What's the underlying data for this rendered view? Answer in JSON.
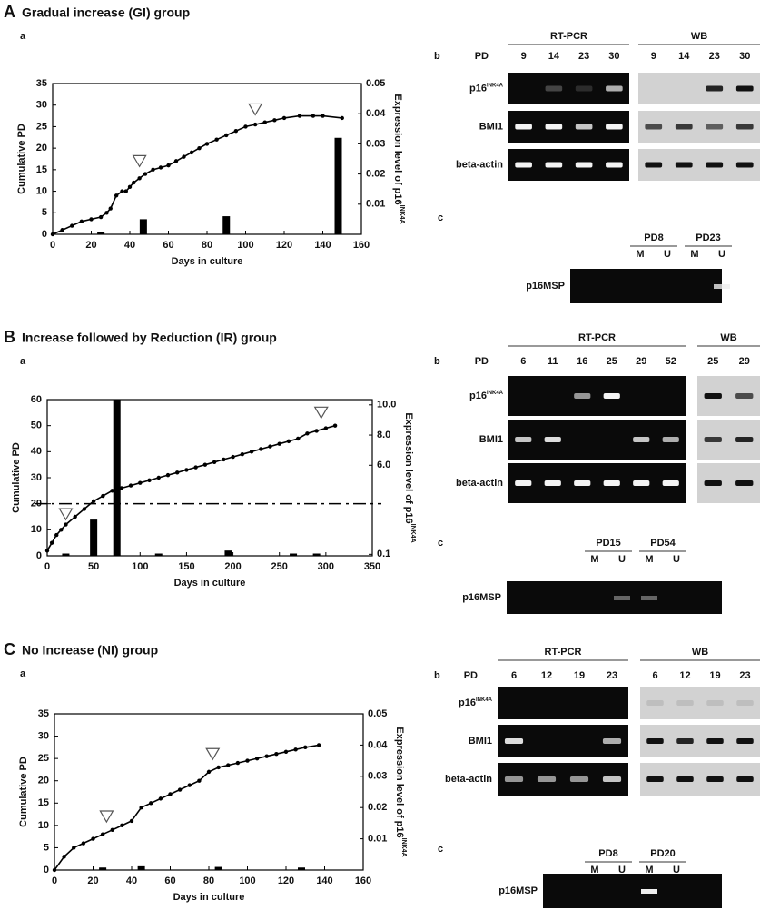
{
  "panels": [
    {
      "label": "A",
      "title": "Gradual increase (GI) group",
      "chart_label": "a",
      "gel_label": "b",
      "msp_label": "c",
      "rt_title": "RT-PCR",
      "wb_title": "WB",
      "pd_label": "PD",
      "rt_lanes": [
        "9",
        "14",
        "23",
        "30"
      ],
      "wb_lanes": [
        "9",
        "14",
        "23",
        "30"
      ],
      "rows": [
        {
          "name": "p16",
          "sup": "INK4A"
        },
        {
          "name": "BMI1"
        },
        {
          "name": "beta-actin"
        }
      ],
      "msp": {
        "groups": [
          "PD8",
          "PD23"
        ],
        "lanes": [
          "M",
          "U",
          "M",
          "U"
        ],
        "row": "p16MSP"
      }
    },
    {
      "label": "B",
      "title": "Increase followed by Reduction (IR) group",
      "chart_label": "a",
      "gel_label": "b",
      "msp_label": "c",
      "rt_title": "RT-PCR",
      "wb_title": "WB",
      "pd_label": "PD",
      "rt_lanes": [
        "6",
        "11",
        "16",
        "25",
        "29",
        "52"
      ],
      "wb_lanes": [
        "25",
        "29"
      ],
      "rows": [
        {
          "name": "p16",
          "sup": "INK4A"
        },
        {
          "name": "BMI1"
        },
        {
          "name": "beta-actin"
        }
      ],
      "msp": {
        "groups": [
          "PD15",
          "PD54"
        ],
        "lanes": [
          "M",
          "U",
          "M",
          "U"
        ],
        "row": "p16MSP"
      }
    },
    {
      "label": "C",
      "title": "No Increase (NI) group",
      "chart_label": "a",
      "gel_label": "b",
      "msp_label": "c",
      "rt_title": "RT-PCR",
      "wb_title": "WB",
      "pd_label": "PD",
      "rt_lanes": [
        "6",
        "12",
        "19",
        "23"
      ],
      "wb_lanes": [
        "6",
        "12",
        "19",
        "23"
      ],
      "rows": [
        {
          "name": "p16",
          "sup": "INK4A"
        },
        {
          "name": "BMI1"
        },
        {
          "name": "beta-actin"
        }
      ],
      "msp": {
        "groups": [
          "PD8",
          "PD20"
        ],
        "lanes": [
          "M",
          "U",
          "M",
          "U"
        ],
        "row": "p16MSP"
      }
    }
  ],
  "chart_data": [
    {
      "type": "combo",
      "xlabel": "Days in culture",
      "ylabel": "Cumulative PD",
      "y2label": "Expression level of p16",
      "y2label_sup": "INK4A",
      "xlim": [
        0,
        160
      ],
      "xticks": [
        0,
        20,
        40,
        60,
        80,
        100,
        120,
        140,
        160
      ],
      "ylim": [
        0,
        35
      ],
      "yticks": [
        0,
        5,
        10,
        15,
        20,
        25,
        30,
        35
      ],
      "y2lim": [
        0,
        0.05
      ],
      "y2ticks": [
        0.01,
        0.02,
        0.03,
        0.04,
        0.05
      ],
      "triangles": [
        {
          "x": 45,
          "y": 17
        },
        {
          "x": 105,
          "y": 29
        }
      ],
      "series": [
        {
          "type": "line",
          "color": "#000000",
          "x": [
            0,
            5,
            10,
            15,
            20,
            25,
            28,
            30,
            33,
            36,
            38,
            40,
            42,
            45,
            48,
            52,
            56,
            60,
            64,
            68,
            72,
            76,
            80,
            85,
            90,
            95,
            100,
            105,
            110,
            115,
            120,
            128,
            135,
            140,
            150
          ],
          "values": [
            0,
            1,
            2,
            3,
            3.5,
            4,
            5,
            6,
            9,
            10,
            10,
            11,
            12,
            13,
            14,
            15,
            15.5,
            16,
            17,
            18,
            19,
            20,
            21,
            22,
            23,
            24,
            25,
            25.5,
            26,
            26.5,
            27,
            27.5,
            27.5,
            27.5,
            27
          ]
        },
        {
          "type": "bar",
          "axis": "y2",
          "color": "#000000",
          "x": [
            25,
            47,
            90,
            148
          ],
          "values": [
            0.0008,
            0.005,
            0.006,
            0.032
          ]
        }
      ]
    },
    {
      "type": "combo",
      "xlabel": "Days in culture",
      "ylabel": "Cumulative PD",
      "y2label": "Expression level of p16",
      "y2label_sup": "INK4A",
      "xlim": [
        0,
        350
      ],
      "xticks": [
        0,
        50,
        100,
        150,
        200,
        250,
        300,
        350
      ],
      "ylim": [
        0,
        60
      ],
      "yticks": [
        0,
        10,
        20,
        30,
        40,
        50,
        60
      ],
      "y2lim": [
        0,
        10.35
      ],
      "y2ticks": [
        {
          "value": 0.1,
          "label": "0.1"
        },
        {
          "value": 6,
          "label": "6.0"
        },
        {
          "value": 8,
          "label": "8.0"
        },
        {
          "value": 10,
          "label": "10.0"
        }
      ],
      "hline": 20,
      "triangles": [
        {
          "x": 20,
          "y": 16
        },
        {
          "x": 295,
          "y": 55
        }
      ],
      "series": [
        {
          "type": "line",
          "color": "#000000",
          "x": [
            0,
            5,
            10,
            15,
            20,
            30,
            40,
            50,
            60,
            70,
            80,
            90,
            100,
            110,
            120,
            130,
            140,
            150,
            160,
            170,
            180,
            190,
            200,
            210,
            220,
            230,
            240,
            250,
            260,
            270,
            280,
            290,
            300,
            310
          ],
          "values": [
            2,
            5,
            8,
            10,
            12,
            15,
            18,
            21,
            23,
            25,
            26,
            27,
            28,
            29,
            30,
            31,
            32,
            33,
            34,
            35,
            36,
            37,
            38,
            39,
            40,
            41,
            42,
            43,
            44,
            45,
            47,
            48,
            49,
            50
          ]
        },
        {
          "type": "bar",
          "axis": "y2",
          "color": "#000000",
          "x": [
            20,
            50,
            75,
            120,
            195,
            265,
            290
          ],
          "values": [
            0.15,
            2.4,
            10.35,
            0.15,
            0.35,
            0.15,
            0.15
          ]
        }
      ]
    },
    {
      "type": "combo",
      "xlabel": "Days in culture",
      "ylabel": "Cumulative PD",
      "y2label": "Expression level of p16",
      "y2label_sup": "INK4A",
      "xlim": [
        0,
        160
      ],
      "xticks": [
        0,
        20,
        40,
        60,
        80,
        100,
        120,
        140,
        160
      ],
      "ylim": [
        0,
        35
      ],
      "yticks": [
        0,
        5,
        10,
        15,
        20,
        25,
        30,
        35
      ],
      "y2lim": [
        0,
        0.05
      ],
      "y2ticks": [
        0.01,
        0.02,
        0.03,
        0.04,
        0.05
      ],
      "triangles": [
        {
          "x": 27,
          "y": 12
        },
        {
          "x": 82,
          "y": 26
        }
      ],
      "series": [
        {
          "type": "line",
          "color": "#000000",
          "x": [
            0,
            5,
            10,
            15,
            20,
            25,
            30,
            35,
            40,
            45,
            50,
            55,
            60,
            65,
            70,
            75,
            80,
            85,
            90,
            95,
            100,
            105,
            110,
            115,
            120,
            125,
            130,
            137
          ],
          "values": [
            0,
            3,
            5,
            6,
            7,
            8,
            9,
            10,
            11,
            14,
            15,
            16,
            17,
            18,
            19,
            20,
            22,
            23,
            23.5,
            24,
            24.5,
            25,
            25.5,
            26,
            26.5,
            27,
            27.5,
            28
          ]
        },
        {
          "type": "bar",
          "axis": "y2",
          "color": "#000000",
          "x": [
            25,
            45,
            85,
            128
          ],
          "values": [
            0.0008,
            0.0012,
            0.001,
            0.0008
          ]
        }
      ]
    }
  ]
}
